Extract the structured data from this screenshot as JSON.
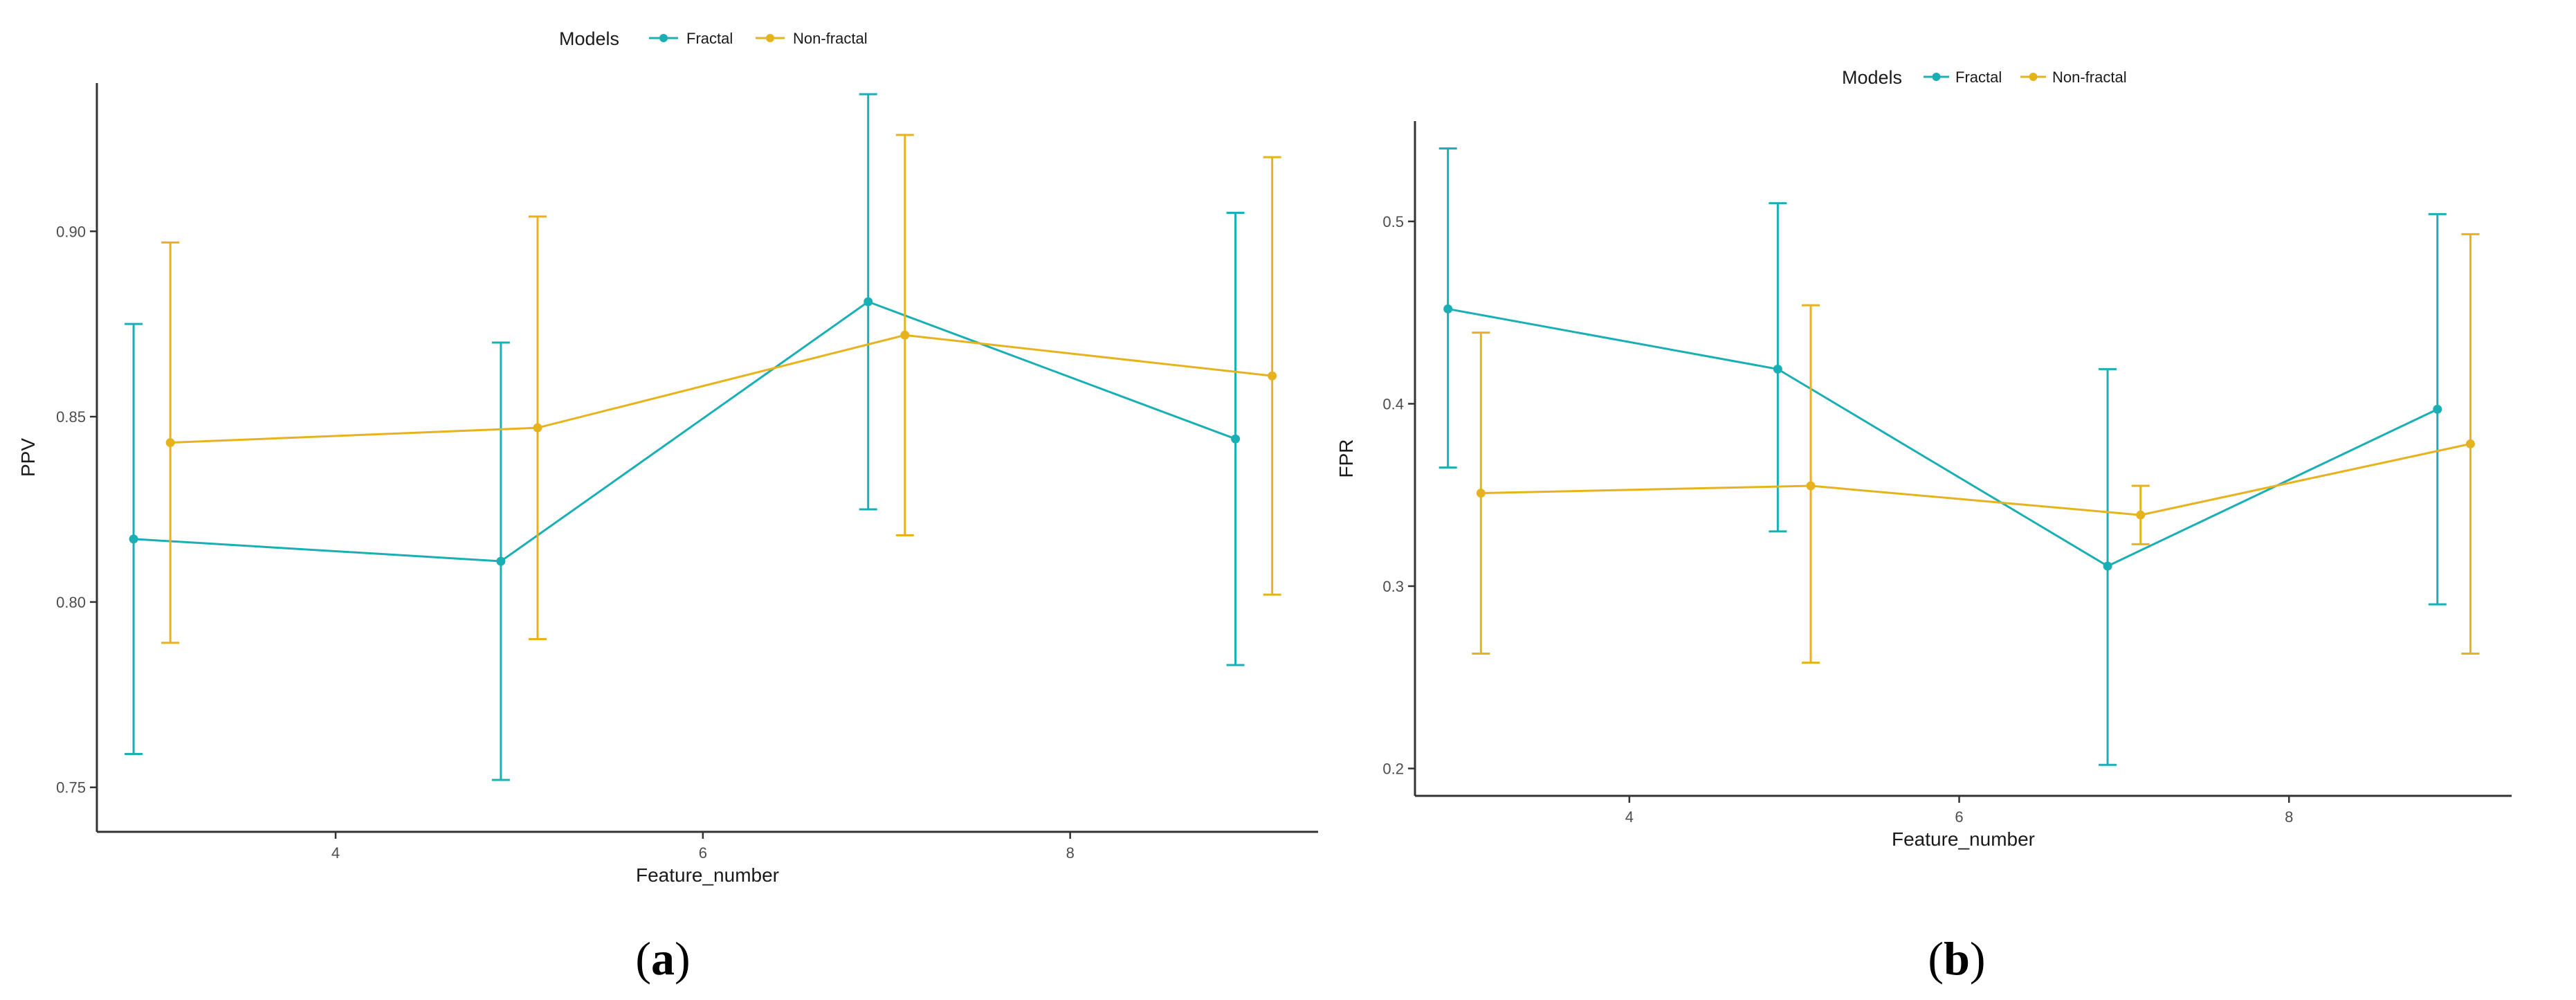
{
  "colors": {
    "fractal": "#1AAFB5",
    "non_fractal": "#E6B31E",
    "axis": "#333333"
  },
  "chart_data": [
    {
      "type": "line",
      "caption_open": "(",
      "caption_letter": "a",
      "caption_close": ")",
      "xlabel": "Feature_number",
      "ylabel": "PPV",
      "xlim": [
        2.7,
        9.35
      ],
      "ylim": [
        0.738,
        0.94
      ],
      "xticks": [
        4,
        6,
        8
      ],
      "xtick_labels": [
        "4",
        "6",
        "8"
      ],
      "yticks": [
        0.75,
        0.8,
        0.85,
        0.9
      ],
      "ytick_labels": [
        "0.75",
        "0.80",
        "0.85",
        "0.90"
      ],
      "grid": false,
      "legend": {
        "title": "Models",
        "placement": "top-center"
      },
      "series": [
        {
          "name": "Fractal",
          "color_key": "fractal",
          "x": [
            2.9,
            4.9,
            6.9,
            8.9
          ],
          "y": [
            0.817,
            0.811,
            0.881,
            0.844
          ],
          "lower": [
            0.759,
            0.752,
            0.825,
            0.783
          ],
          "upper": [
            0.875,
            0.87,
            0.937,
            0.905
          ]
        },
        {
          "name": "Non-fractal",
          "color_key": "non_fractal",
          "x": [
            3.1,
            5.1,
            7.1,
            9.1
          ],
          "y": [
            0.843,
            0.847,
            0.872,
            0.861
          ],
          "lower": [
            0.789,
            0.79,
            0.818,
            0.802
          ],
          "upper": [
            0.897,
            0.904,
            0.926,
            0.92
          ]
        }
      ]
    },
    {
      "type": "line",
      "caption_open": "(",
      "caption_letter": "b",
      "caption_close": ")",
      "xlabel": "Feature_number",
      "ylabel": "FPR",
      "xlim": [
        2.7,
        9.35
      ],
      "ylim": [
        0.185,
        0.555
      ],
      "xticks": [
        4,
        6,
        8
      ],
      "xtick_labels": [
        "4",
        "6",
        "8"
      ],
      "yticks": [
        0.2,
        0.3,
        0.4,
        0.5
      ],
      "ytick_labels": [
        "0.2",
        "0.3",
        "0.4",
        "0.5"
      ],
      "grid": false,
      "legend": {
        "title": "Models",
        "placement": "top-center"
      },
      "series": [
        {
          "name": "Fractal",
          "color_key": "fractal",
          "x": [
            2.9,
            4.9,
            6.9,
            8.9
          ],
          "y": [
            0.452,
            0.419,
            0.311,
            0.397
          ],
          "lower": [
            0.365,
            0.33,
            0.202,
            0.29
          ],
          "upper": [
            0.54,
            0.51,
            0.419,
            0.504
          ]
        },
        {
          "name": "Non-fractal",
          "color_key": "non_fractal",
          "x": [
            3.1,
            5.1,
            7.1,
            9.1
          ],
          "y": [
            0.351,
            0.355,
            0.339,
            0.378
          ],
          "lower": [
            0.263,
            0.258,
            0.323,
            0.263
          ],
          "upper": [
            0.439,
            0.454,
            0.355,
            0.493
          ]
        }
      ]
    }
  ]
}
